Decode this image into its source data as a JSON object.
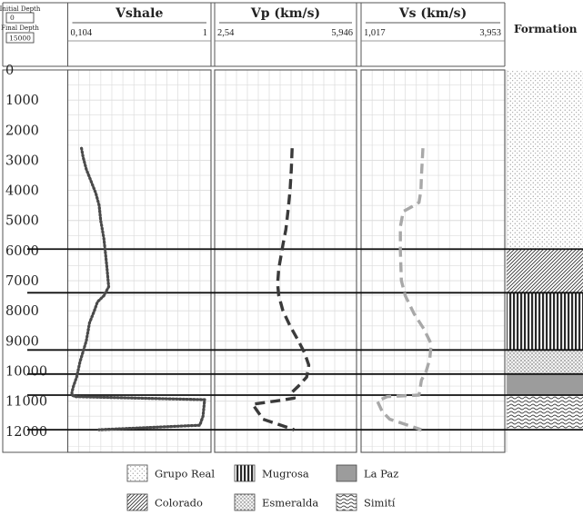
{
  "header": {
    "initial_depth_label": "Initial Depth",
    "initial_depth_value": "0",
    "final_depth_label": "Final Depth",
    "final_depth_value": "15000",
    "formation_label": "Formation"
  },
  "tracks": [
    {
      "title": "Vshale",
      "scale_min": "0,104",
      "scale_max": "1"
    },
    {
      "title": "Vp (km/s)",
      "scale_min": "2,54",
      "scale_max": "5,946"
    },
    {
      "title": "Vs (km/s)",
      "scale_min": "1,017",
      "scale_max": "3,953"
    }
  ],
  "colors": {
    "vshale": "#4a4a4a",
    "vp": "#3a3a3a",
    "vs": "#a8a8a8",
    "grid": "#dcdcdc",
    "frame": "#555555"
  },
  "chart_data": {
    "type": "line",
    "depth_axis": {
      "ylim": [
        0,
        12700
      ],
      "ticks": [
        "0",
        "1000",
        "2000",
        "3000",
        "4000",
        "5000",
        "6000",
        "7000",
        "8000",
        "9000",
        "10000",
        "11000",
        "12000"
      ],
      "inverted": true
    },
    "formation_boundaries": [
      5950,
      7400,
      9300,
      10100,
      10800,
      11950
    ],
    "formations": [
      {
        "name": "Grupo Real",
        "top": 0,
        "base": 5950
      },
      {
        "name": "Colorado",
        "top": 5950,
        "base": 7400
      },
      {
        "name": "Mugrosa",
        "top": 7400,
        "base": 9300
      },
      {
        "name": "Esmeralda",
        "top": 9300,
        "base": 10100
      },
      {
        "name": "La Paz",
        "top": 10100,
        "base": 10800
      },
      {
        "name": "Simití",
        "top": 10800,
        "base": 11950
      }
    ],
    "series": [
      {
        "name": "Vshale",
        "xlim": [
          0.104,
          1
        ],
        "x": [
          0.19,
          0.2,
          0.22,
          0.25,
          0.28,
          0.3,
          0.31,
          0.32,
          0.33,
          0.34,
          0.35,
          0.36,
          0.33,
          0.29,
          0.27,
          0.24,
          0.22,
          0.18,
          0.16,
          0.14,
          0.13,
          0.13,
          0.15,
          0.96,
          0.95,
          0.93,
          0.3
        ],
        "y": [
          2600,
          2900,
          3300,
          3700,
          4100,
          4500,
          5000,
          5300,
          5600,
          6100,
          6600,
          7200,
          7500,
          7700,
          8000,
          8400,
          9000,
          9700,
          10200,
          10500,
          10700,
          10800,
          10850,
          10950,
          11500,
          11800,
          11950
        ]
      },
      {
        "name": "Vp",
        "xlim": [
          2.54,
          5.946
        ],
        "x": [
          4.4,
          4.38,
          4.35,
          4.3,
          4.25,
          4.18,
          4.08,
          4.05,
          4.08,
          4.18,
          4.35,
          4.55,
          4.7,
          4.8,
          4.75,
          4.55,
          4.4,
          4.45,
          4.0,
          3.45,
          3.55,
          3.7,
          4.45
        ],
        "y": [
          2600,
          3300,
          4000,
          4700,
          5300,
          5800,
          6600,
          7100,
          7500,
          8000,
          8500,
          9000,
          9400,
          9800,
          10200,
          10500,
          10700,
          10900,
          11000,
          11100,
          11300,
          11600,
          11950
        ]
      },
      {
        "name": "Vs",
        "xlim": [
          1.017,
          3.953
        ],
        "x": [
          2.28,
          2.25,
          2.24,
          2.2,
          2.05,
          1.88,
          1.82,
          1.82,
          1.84,
          1.92,
          2.1,
          2.3,
          2.45,
          2.42,
          2.35,
          2.25,
          2.2,
          1.55,
          1.35,
          1.45,
          1.6,
          2.25
        ],
        "y": [
          2600,
          3500,
          4000,
          4400,
          4550,
          4700,
          5200,
          6000,
          7000,
          7500,
          8100,
          8600,
          9100,
          9600,
          10000,
          10300,
          10800,
          10850,
          11000,
          11350,
          11600,
          11950
        ]
      }
    ]
  },
  "legend": [
    {
      "name": "Grupo Real"
    },
    {
      "name": "Mugrosa"
    },
    {
      "name": "La Paz"
    },
    {
      "name": "Colorado"
    },
    {
      "name": "Esmeralda"
    },
    {
      "name": "Simití"
    }
  ]
}
